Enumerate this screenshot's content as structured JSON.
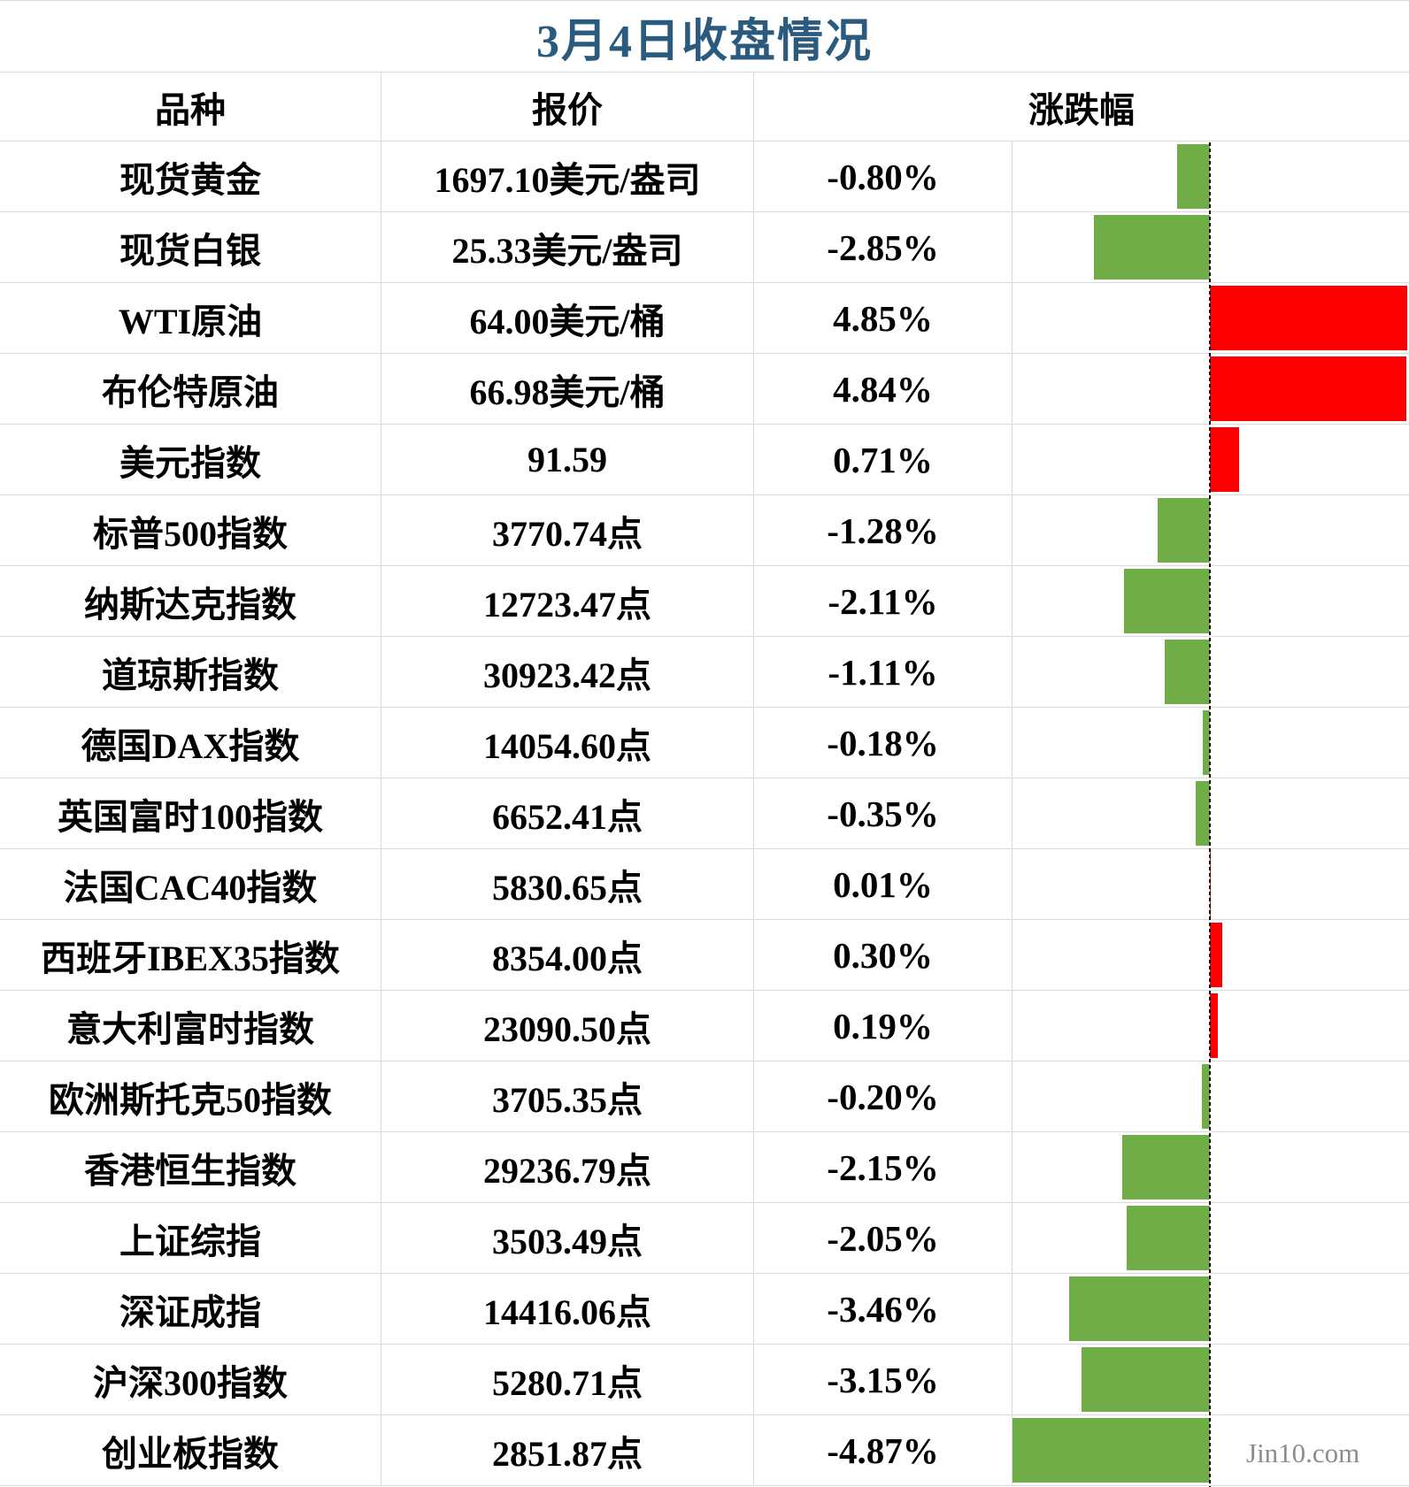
{
  "title": "3月4日收盘情况",
  "title_color": "#2A5A7E",
  "watermark": "Jin10.com",
  "columns": {
    "variety": "品种",
    "quote": "报价",
    "change": "涨跌幅"
  },
  "colors": {
    "up": "#FF0000",
    "down": "#70AD47",
    "grid": "#D9D9D9",
    "zero_line": "#000000",
    "watermark": "#8C8C8C"
  },
  "rows": [
    {
      "name": "现货黄金",
      "quote": "1697.10美元/盎司",
      "change": "-0.80%",
      "pct": -0.8
    },
    {
      "name": "现货白银",
      "quote": "25.33美元/盎司",
      "change": "-2.85%",
      "pct": -2.85
    },
    {
      "name": "WTI原油",
      "quote": "64.00美元/桶",
      "change": "4.85%",
      "pct": 4.85
    },
    {
      "name": "布伦特原油",
      "quote": "66.98美元/桶",
      "change": "4.84%",
      "pct": 4.84
    },
    {
      "name": "美元指数",
      "quote": "91.59",
      "change": "0.71%",
      "pct": 0.71
    },
    {
      "name": "标普500指数",
      "quote": "3770.74点",
      "change": "-1.28%",
      "pct": -1.28
    },
    {
      "name": "纳斯达克指数",
      "quote": "12723.47点",
      "change": "-2.11%",
      "pct": -2.11
    },
    {
      "name": "道琼斯指数",
      "quote": "30923.42点",
      "change": "-1.11%",
      "pct": -1.11
    },
    {
      "name": "德国DAX指数",
      "quote": "14054.60点",
      "change": "-0.18%",
      "pct": -0.18
    },
    {
      "name": "英国富时100指数",
      "quote": "6652.41点",
      "change": "-0.35%",
      "pct": -0.35
    },
    {
      "name": "法国CAC40指数",
      "quote": "5830.65点",
      "change": "0.01%",
      "pct": 0.01
    },
    {
      "name": "西班牙IBEX35指数",
      "quote": "8354.00点",
      "change": "0.30%",
      "pct": 0.3
    },
    {
      "name": "意大利富时指数",
      "quote": "23090.50点",
      "change": "0.19%",
      "pct": 0.19
    },
    {
      "name": "欧洲斯托克50指数",
      "quote": "3705.35点",
      "change": "-0.20%",
      "pct": -0.2
    },
    {
      "name": "香港恒生指数",
      "quote": "29236.79点",
      "change": "-2.15%",
      "pct": -2.15
    },
    {
      "name": "上证综指",
      "quote": "3503.49点",
      "change": "-2.05%",
      "pct": -2.05
    },
    {
      "name": "深证成指",
      "quote": "14416.06点",
      "change": "-3.46%",
      "pct": -3.46
    },
    {
      "name": "沪深300指数",
      "quote": "5280.71点",
      "change": "-3.15%",
      "pct": -3.15
    },
    {
      "name": "创业板指数",
      "quote": "2851.87点",
      "change": "-4.87%",
      "pct": -4.87
    }
  ],
  "chart_data": {
    "type": "bar",
    "orientation": "horizontal",
    "title": "3月4日收盘情况",
    "categories": [
      "现货黄金",
      "现货白银",
      "WTI原油",
      "布伦特原油",
      "美元指数",
      "标普500指数",
      "纳斯达克指数",
      "道琼斯指数",
      "德国DAX指数",
      "英国富时100指数",
      "法国CAC40指数",
      "西班牙IBEX35指数",
      "意大利富时指数",
      "欧洲斯托克50指数",
      "香港恒生指数",
      "上证综指",
      "深证成指",
      "沪深300指数",
      "创业板指数"
    ],
    "values": [
      -0.8,
      -2.85,
      4.85,
      4.84,
      0.71,
      -1.28,
      -2.11,
      -1.11,
      -0.18,
      -0.35,
      0.01,
      0.3,
      0.19,
      -0.2,
      -2.15,
      -2.05,
      -3.46,
      -3.15,
      -4.87
    ],
    "value_unit": "%",
    "xlim": [
      -4.87,
      4.85
    ],
    "zero_axis": "dashed-vertical-line",
    "positive_color": "#FF0000",
    "negative_color": "#70AD47",
    "grid": false,
    "legend": false
  }
}
